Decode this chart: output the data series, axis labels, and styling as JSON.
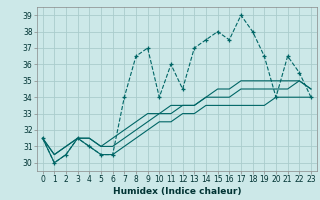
{
  "xlabel": "Humidex (Indice chaleur)",
  "ylabel": "",
  "bg_color": "#cce8e8",
  "grid_color": "#aacccc",
  "line_color": "#006666",
  "x_values": [
    0,
    1,
    2,
    3,
    4,
    5,
    6,
    7,
    8,
    9,
    10,
    11,
    12,
    13,
    14,
    15,
    16,
    17,
    18,
    19,
    20,
    21,
    22,
    23
  ],
  "series1": [
    31.5,
    30.0,
    30.5,
    31.5,
    31.0,
    30.5,
    30.5,
    34.0,
    36.5,
    37.0,
    34.0,
    36.0,
    34.5,
    37.0,
    37.5,
    38.0,
    37.5,
    39.0,
    38.0,
    36.5,
    34.0,
    36.5,
    35.5,
    34.0
  ],
  "series2": [
    31.5,
    30.0,
    30.5,
    31.5,
    31.0,
    30.5,
    30.5,
    31.0,
    31.5,
    32.0,
    32.5,
    32.5,
    33.0,
    33.0,
    33.5,
    33.5,
    33.5,
    33.5,
    33.5,
    33.5,
    34.0,
    34.0,
    34.0,
    34.0
  ],
  "series3": [
    31.5,
    30.5,
    31.0,
    31.5,
    31.5,
    31.0,
    31.0,
    31.5,
    32.0,
    32.5,
    33.0,
    33.0,
    33.5,
    33.5,
    34.0,
    34.0,
    34.0,
    34.5,
    34.5,
    34.5,
    34.5,
    34.5,
    35.0,
    34.5
  ],
  "series4": [
    31.5,
    30.5,
    31.0,
    31.5,
    31.5,
    31.0,
    31.5,
    32.0,
    32.5,
    33.0,
    33.0,
    33.5,
    33.5,
    33.5,
    34.0,
    34.5,
    34.5,
    35.0,
    35.0,
    35.0,
    35.0,
    35.0,
    35.0,
    34.5
  ],
  "ylim": [
    29.5,
    39.5
  ],
  "xlim": [
    -0.5,
    23.5
  ],
  "yticks": [
    30,
    31,
    32,
    33,
    34,
    35,
    36,
    37,
    38,
    39
  ],
  "xticks": [
    0,
    1,
    2,
    3,
    4,
    5,
    6,
    7,
    8,
    9,
    10,
    11,
    12,
    13,
    14,
    15,
    16,
    17,
    18,
    19,
    20,
    21,
    22,
    23
  ],
  "tick_fontsize": 5.5,
  "xlabel_fontsize": 6.5
}
